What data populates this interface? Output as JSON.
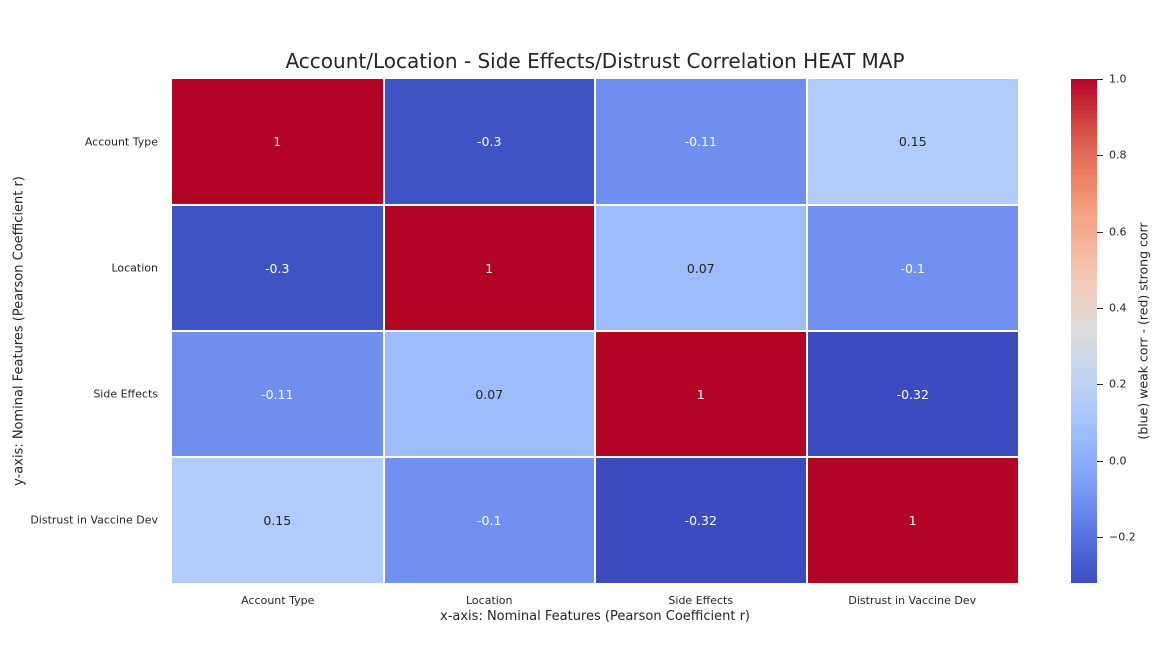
{
  "chart_data": {
    "type": "heatmap",
    "title": "Account/Location - Side Effects/Distrust Correlation HEAT MAP",
    "xlabel": "x-axis: Nominal Features (Pearson Coefficient r)",
    "ylabel": "y-axis: Nominal Features (Pearson Coefficient r)",
    "x_categories": [
      "Account Type",
      "Location",
      "Side Effects",
      "Distrust in Vaccine Dev"
    ],
    "y_categories": [
      "Account Type",
      "Location",
      "Side Effects",
      "Distrust in Vaccine Dev"
    ],
    "values": [
      [
        1,
        -0.3,
        -0.11,
        0.15
      ],
      [
        -0.3,
        1,
        0.07,
        -0.1
      ],
      [
        -0.11,
        0.07,
        1,
        -0.32
      ],
      [
        0.15,
        -0.1,
        -0.32,
        1
      ]
    ],
    "cell_labels": [
      [
        "1",
        "-0.3",
        "-0.11",
        "0.15"
      ],
      [
        "-0.3",
        "1",
        "0.07",
        "-0.1"
      ],
      [
        "-0.11",
        "0.07",
        "1",
        "-0.32"
      ],
      [
        "0.15",
        "-0.1",
        "-0.32",
        "1"
      ]
    ],
    "colormap": "coolwarm",
    "vmin": -0.32,
    "vmax": 1.0,
    "colorbar": {
      "label": "(blue) weak corr - (red) strong corr",
      "ticks": [
        -0.2,
        0.0,
        0.2,
        0.4,
        0.6,
        0.8,
        1.0
      ],
      "tick_labels": [
        "−0.2",
        "0.0",
        "0.2",
        "0.4",
        "0.6",
        "0.8",
        "1.0"
      ]
    },
    "colors": {
      "low": "#3b4cc0",
      "mid": "#dddddd",
      "high": "#b40426"
    }
  }
}
